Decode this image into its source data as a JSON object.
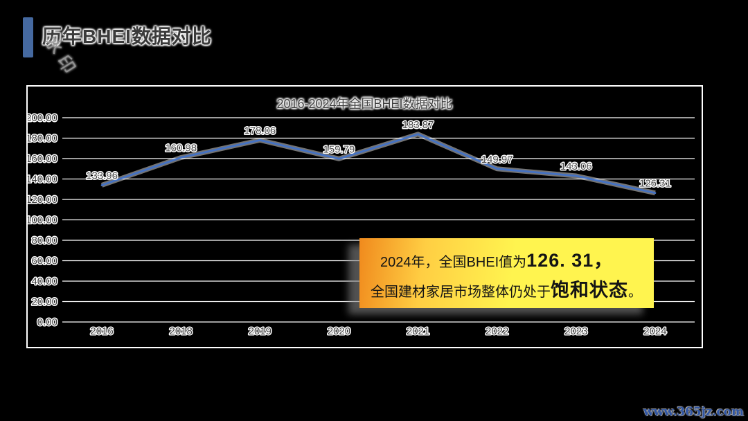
{
  "page": {
    "title": "历年BHEI数据对比",
    "watermark_diagonal": "水印",
    "footer_watermark": "www.365jz.com"
  },
  "callout": {
    "line1_prefix": "2024年，全国BHEI值为",
    "line1_bold": "126. 31",
    "line1_suffix": "，",
    "line2_prefix": "全国建材家居市场整体仍处于",
    "line2_bold": "饱和状态",
    "line2_suffix": "。"
  },
  "colors": {
    "accent_bar": "#4569A0",
    "line": "#4472C4",
    "callout_orange": "#F08A1D",
    "callout_yellow": "#FFF44F",
    "footer_blue": "#2F55A4"
  },
  "chart_data": {
    "type": "line",
    "title": "2016-2024年全国BHEI数据对比",
    "categories": [
      "2016",
      "2018",
      "2019",
      "2020",
      "2021",
      "2022",
      "2023",
      "2024"
    ],
    "values": [
      133.96,
      160.98,
      178.06,
      159.79,
      183.87,
      149.97,
      143.06,
      126.31
    ],
    "ylim": [
      0,
      200
    ],
    "ytick_step": 20,
    "grid": true,
    "legend": "none",
    "line_color": "#4472C4",
    "data_labels": true
  }
}
